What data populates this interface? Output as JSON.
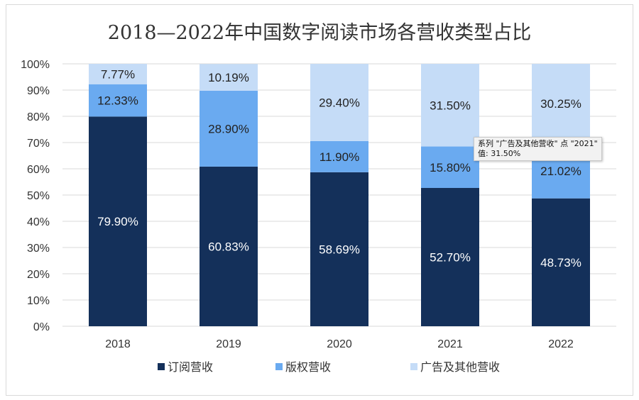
{
  "chart_data": {
    "type": "bar",
    "stacked": true,
    "title": "2018—2022年中国数字阅读市场各营收类型占比",
    "categories": [
      "2018",
      "2019",
      "2020",
      "2021",
      "2022"
    ],
    "ylim": [
      0,
      100
    ],
    "yticks": [
      "0%",
      "10%",
      "20%",
      "30%",
      "40%",
      "50%",
      "60%",
      "70%",
      "80%",
      "90%",
      "100%"
    ],
    "grid": true,
    "legend_position": "bottom",
    "series": [
      {
        "name": "订阅营收",
        "color": "#14305a",
        "label_color": "#ffffff",
        "values": [
          79.9,
          60.83,
          58.69,
          52.7,
          48.73
        ],
        "labels": [
          "79.90%",
          "60.83%",
          "58.69%",
          "52.70%",
          "48.73%"
        ]
      },
      {
        "name": "版权营收",
        "color": "#6aaaf0",
        "label_color": "#222222",
        "values": [
          12.33,
          28.9,
          11.9,
          15.8,
          21.02
        ],
        "labels": [
          "12.33%",
          "28.90%",
          "11.90%",
          "15.80%",
          "21.02%"
        ]
      },
      {
        "name": "广告及其他营收",
        "color": "#c5dcf7",
        "label_color": "#222222",
        "values": [
          7.77,
          10.19,
          29.4,
          31.5,
          30.25
        ],
        "labels": [
          "7.77%",
          "10.19%",
          "29.40%",
          "31.50%",
          "30.25%"
        ]
      }
    ]
  },
  "tooltip": {
    "line1": "系列 \"广告及其他营收\" 点 \"2021\"",
    "line2": "值: 31.50%"
  }
}
